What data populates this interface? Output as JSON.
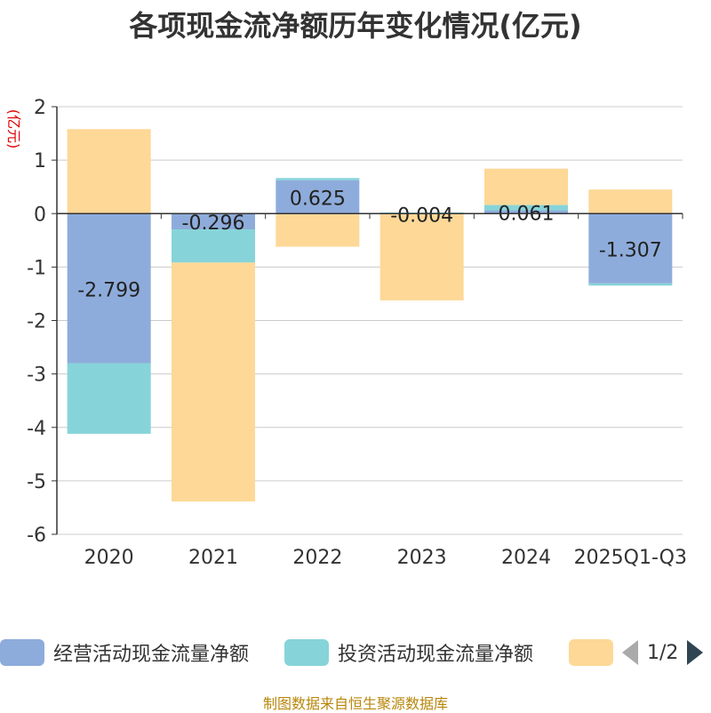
{
  "chart_data": {
    "type": "bar",
    "stacked": true,
    "title": "各项现金流净额历年变化情况(亿元)",
    "ylabel": "(亿元)",
    "ylim": [
      -6,
      2
    ],
    "yticks": [
      2,
      1,
      0,
      -1,
      -2,
      -3,
      -4,
      -5,
      -6
    ],
    "categories": [
      "2020",
      "2021",
      "2022",
      "2023",
      "2024",
      "2025Q1-Q3"
    ],
    "series": [
      {
        "name": "经营活动现金流量净额",
        "color": "#8eacdb",
        "values": [
          -2.799,
          -0.296,
          0.625,
          -0.004,
          0.061,
          -1.307
        ],
        "labels": [
          "-2.799",
          "-0.296",
          "0.625",
          "-0.004",
          "0.061",
          "-1.307"
        ]
      },
      {
        "name": "投资活动现金流量净额",
        "color": "#86d4d9",
        "values": [
          -1.32,
          -0.62,
          0.04,
          0.02,
          0.1,
          -0.04
        ]
      },
      {
        "name": "",
        "color": "#fdd897",
        "values": [
          1.58,
          -4.47,
          -0.62,
          -1.62,
          0.68,
          0.45
        ]
      }
    ],
    "grid": true,
    "legend_position": "bottom"
  },
  "legend": {
    "items": [
      {
        "label": "经营活动现金流量净额",
        "color": "#8eacdb"
      },
      {
        "label": "投资活动现金流量净额",
        "color": "#86d4d9"
      },
      {
        "label": "",
        "color": "#fdd897"
      }
    ],
    "page_text": "1/2"
  },
  "source": "制图数据来自恒生聚源数据库"
}
